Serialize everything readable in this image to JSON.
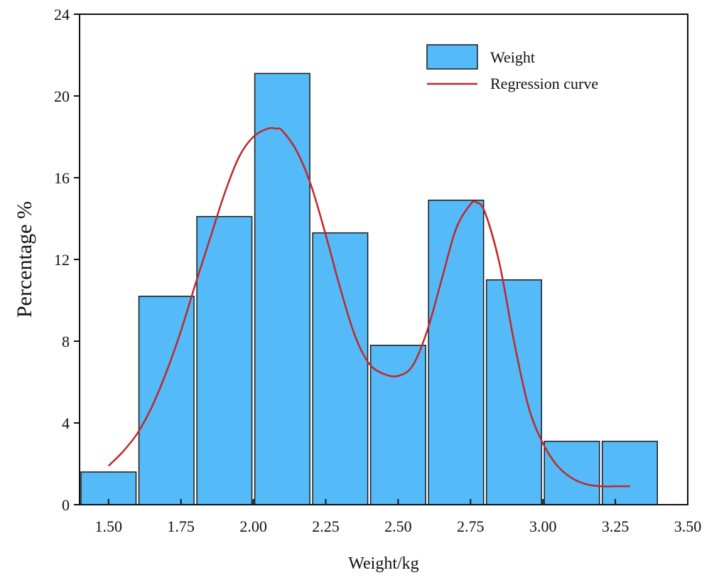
{
  "chart_data": {
    "type": "bar",
    "title": "",
    "xlabel": "Weight/kg",
    "ylabel": "Percentage %",
    "xlim": [
      1.4,
      3.5
    ],
    "ylim": [
      0,
      24
    ],
    "xticks": [
      1.5,
      1.75,
      2.0,
      2.25,
      2.5,
      2.75,
      3.0,
      3.25,
      3.5
    ],
    "xtick_labels": [
      "1.50",
      "1.75",
      "2.00",
      "2.25",
      "2.50",
      "2.75",
      "3.00",
      "3.25",
      "3.50"
    ],
    "yticks": [
      0,
      4,
      8,
      12,
      16,
      20,
      24
    ],
    "ytick_labels": [
      "0",
      "4",
      "8",
      "12",
      "16",
      "20",
      "24"
    ],
    "grid": false,
    "legend_position": "top-right",
    "series": [
      {
        "name": "Weight",
        "kind": "histogram",
        "color": "#54BAF8",
        "bin_edges": [
          1.4,
          1.6,
          1.8,
          2.0,
          2.2,
          2.4,
          2.6,
          2.8,
          3.0,
          3.2,
          3.4
        ],
        "values": [
          1.6,
          10.2,
          14.1,
          21.1,
          13.3,
          7.8,
          14.9,
          11.0,
          3.1,
          3.1
        ]
      },
      {
        "name": "Regression curve",
        "kind": "line",
        "color": "#C0282A",
        "x": [
          1.5,
          1.55,
          1.6,
          1.65,
          1.7,
          1.75,
          1.8,
          1.85,
          1.9,
          1.95,
          2.0,
          2.05,
          2.08,
          2.1,
          2.15,
          2.2,
          2.25,
          2.3,
          2.35,
          2.4,
          2.45,
          2.5,
          2.55,
          2.6,
          2.65,
          2.7,
          2.75,
          2.77,
          2.8,
          2.85,
          2.9,
          2.95,
          3.0,
          3.05,
          3.1,
          3.15,
          3.2,
          3.25,
          3.3
        ],
        "y": [
          1.9,
          2.6,
          3.5,
          4.8,
          6.5,
          8.5,
          10.8,
          13.0,
          15.2,
          17.0,
          18.0,
          18.4,
          18.4,
          18.3,
          17.3,
          15.6,
          13.2,
          10.6,
          8.3,
          6.9,
          6.4,
          6.3,
          6.8,
          8.5,
          11.0,
          13.5,
          14.7,
          14.8,
          14.3,
          11.8,
          8.0,
          4.8,
          3.0,
          1.9,
          1.3,
          1.0,
          0.9,
          0.9,
          0.9
        ]
      }
    ]
  }
}
